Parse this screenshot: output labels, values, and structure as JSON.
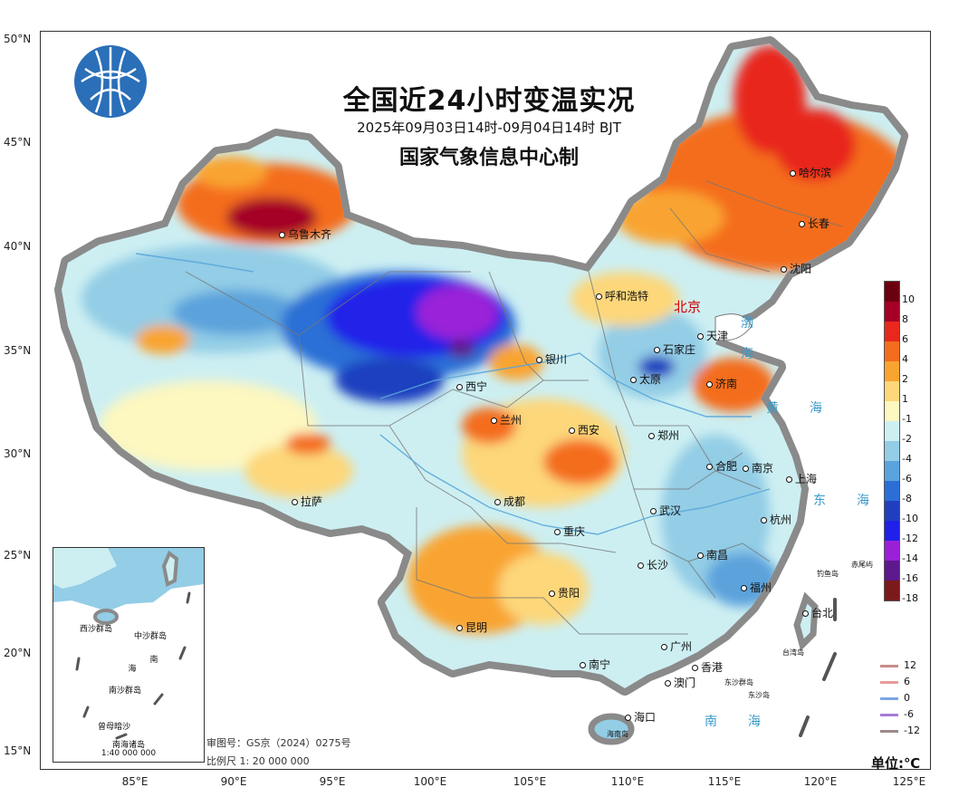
{
  "title": "全国近24小时变温实况",
  "subtitle": "2025年09月03日14时-09月04日14时  BJT",
  "agency": "国家气象信息中心制",
  "axes": {
    "lat_labels": [
      "50°N",
      "45°N",
      "40°N",
      "35°N",
      "30°N",
      "25°N",
      "20°N",
      "15°N"
    ],
    "lon_labels": [
      "85°E",
      "90°E",
      "95°E",
      "100°E",
      "105°E",
      "110°E",
      "115°E",
      "120°E",
      "125°E"
    ]
  },
  "capital": "北京",
  "cities": [
    "哈尔滨",
    "长春",
    "沈阳",
    "乌鲁木齐",
    "呼和浩特",
    "天津",
    "石家庄",
    "银川",
    "太原",
    "济南",
    "西宁",
    "兰州",
    "西安",
    "郑州",
    "合肥",
    "南京",
    "上海",
    "拉萨",
    "成都",
    "武汉",
    "杭州",
    "重庆",
    "长沙",
    "南昌",
    "贵阳",
    "福州",
    "台北",
    "昆明",
    "广州",
    "香港",
    "澳门",
    "南宁",
    "海口"
  ],
  "seas": [
    "渤",
    "海",
    "黄　海",
    "东　海",
    "南　海"
  ],
  "islands": [
    "钓鱼岛",
    "赤尾屿",
    "台湾岛",
    "东沙群岛",
    "东沙岛",
    "海南岛"
  ],
  "legend": {
    "ticks": [
      "10",
      "8",
      "6",
      "4",
      "2",
      "1",
      "-1",
      "-2",
      "-4",
      "-6",
      "-8",
      "-10",
      "-12",
      "-14",
      "-16",
      "-18"
    ],
    "colors": [
      "#6b0010",
      "#a50026",
      "#e8281c",
      "#f46d1f",
      "#f9a431",
      "#fdd77a",
      "#fdf7c0",
      "#cdeff2",
      "#93cde6",
      "#5ba3dc",
      "#2b6fd6",
      "#1f3fbf",
      "#2020e8",
      "#9a20d8",
      "#5c1a8c",
      "#7a1a1a"
    ]
  },
  "contour_legend": [
    {
      "label": "12",
      "color": "#c88a8a"
    },
    {
      "label": "6",
      "color": "#e89a9a"
    },
    {
      "label": "0",
      "color": "#7aa7e6"
    },
    {
      "label": "-6",
      "color": "#a77cd9"
    },
    {
      "label": "-12",
      "color": "#9b8a8a"
    }
  ],
  "unit": "单位:℃",
  "review_no": "审图号：GS京（2024）0275号",
  "scale": "比例尺 1: 20 000 000",
  "inset": {
    "title": "南海诸岛",
    "scale": "1:40 000 000",
    "labels": [
      "西沙群岛",
      "中沙群岛",
      "南",
      "海",
      "南沙群岛",
      "曾母暗沙"
    ]
  }
}
